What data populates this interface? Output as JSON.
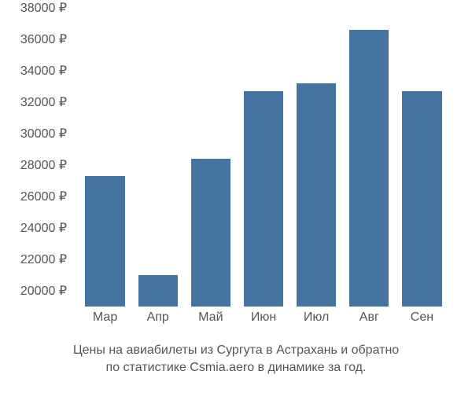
{
  "chart": {
    "type": "bar",
    "categories": [
      "Мар",
      "Апр",
      "Май",
      "Июн",
      "Июл",
      "Авг",
      "Сен"
    ],
    "values": [
      27300,
      21000,
      28400,
      32700,
      33200,
      36600,
      32700
    ],
    "bar_color": "#4574a2",
    "y_ticks": [
      20000,
      22000,
      24000,
      26000,
      28000,
      30000,
      32000,
      34000,
      36000,
      38000
    ],
    "y_tick_labels": [
      "20000 ₽",
      "22000 ₽",
      "24000 ₽",
      "26000 ₽",
      "28000 ₽",
      "30000 ₽",
      "32000 ₽",
      "34000 ₽",
      "36000 ₽",
      "38000 ₽"
    ],
    "ylim_min": 19000,
    "ylim_max": 38000,
    "bar_width_ratio": 0.75,
    "background_color": "#ffffff",
    "tick_color": "#555555",
    "tick_fontsize": 16
  },
  "caption": {
    "line1": "Цены на авиабилеты из Сургута в Астрахань и обратно",
    "line2": "по статистике Csmia.aero в динамике за год."
  }
}
